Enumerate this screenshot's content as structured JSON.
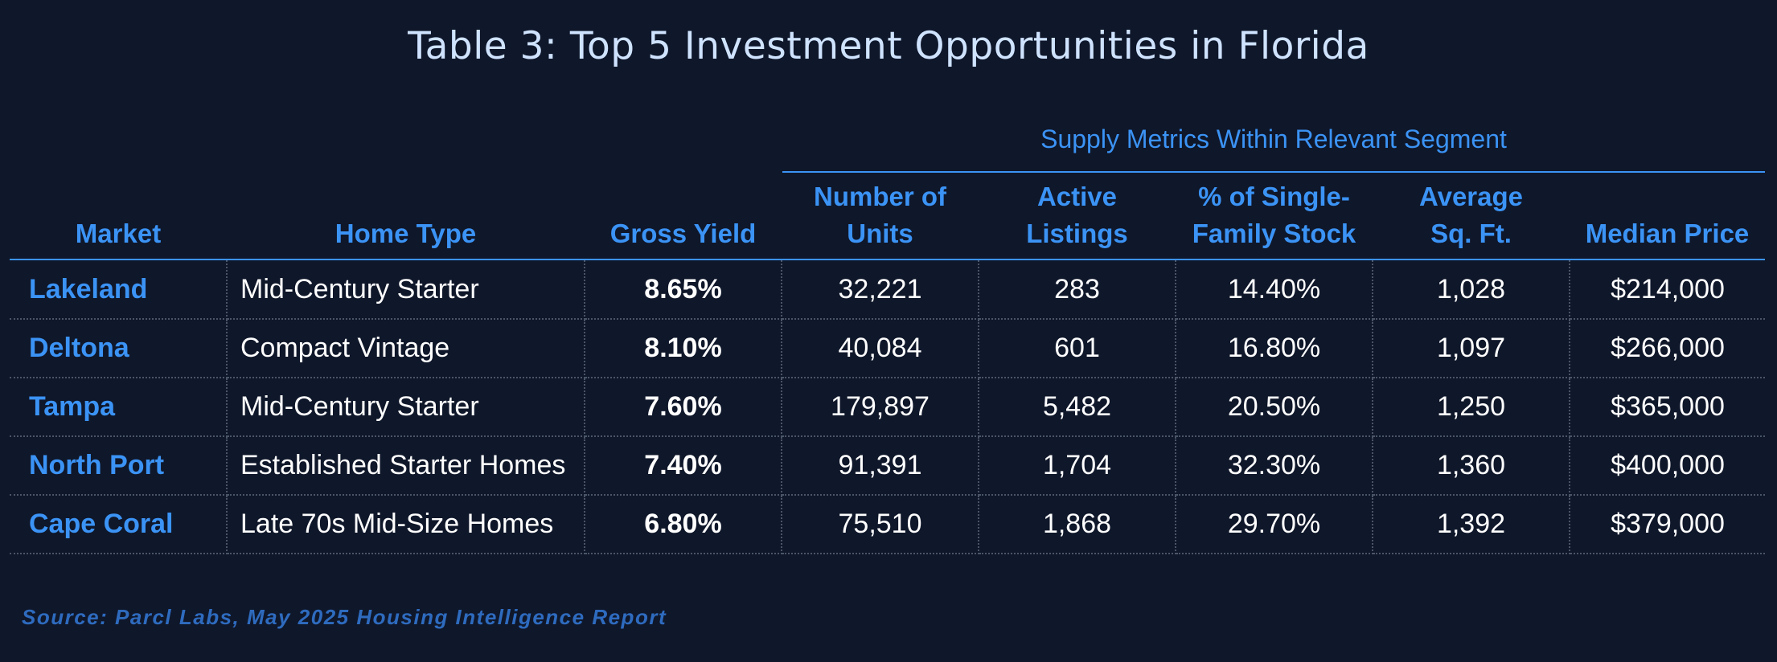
{
  "title": "Table 3: Top 5 Investment Opportunities in Florida",
  "group_header": "Supply Metrics Within Relevant Segment",
  "columns": [
    {
      "line1": "",
      "line2": "Market"
    },
    {
      "line1": "",
      "line2": "Home Type"
    },
    {
      "line1": "",
      "line2": "Gross Yield"
    },
    {
      "line1": "Number of",
      "line2": "Units"
    },
    {
      "line1": "Active",
      "line2": "Listings"
    },
    {
      "line1": "% of Single-",
      "line2": "Family Stock"
    },
    {
      "line1": "Average",
      "line2": "Sq. Ft."
    },
    {
      "line1": "",
      "line2": "Median Price"
    }
  ],
  "rows": [
    {
      "market": "Lakeland",
      "home_type": "Mid-Century Starter",
      "gross_yield": "8.65%",
      "units": "32,221",
      "listings": "283",
      "sf_stock": "14.40%",
      "sqft": "1,028",
      "median_price": "$214,000"
    },
    {
      "market": "Deltona",
      "home_type": "Compact Vintage",
      "gross_yield": "8.10%",
      "units": "40,084",
      "listings": "601",
      "sf_stock": "16.80%",
      "sqft": "1,097",
      "median_price": "$266,000"
    },
    {
      "market": "Tampa",
      "home_type": "Mid-Century Starter",
      "gross_yield": "7.60%",
      "units": "179,897",
      "listings": "5,482",
      "sf_stock": "20.50%",
      "sqft": "1,250",
      "median_price": "$365,000"
    },
    {
      "market": "North Port",
      "home_type": "Established Starter Homes",
      "gross_yield": "7.40%",
      "units": "91,391",
      "listings": "1,704",
      "sf_stock": "32.30%",
      "sqft": "1,360",
      "median_price": "$400,000"
    },
    {
      "market": "Cape Coral",
      "home_type": "Late 70s Mid-Size Homes",
      "gross_yield": "6.80%",
      "units": "75,510",
      "listings": "1,868",
      "sf_stock": "29.70%",
      "sqft": "1,392",
      "median_price": "$379,000"
    }
  ],
  "source": "Source: Parcl Labs, May 2025 Housing Intelligence Report",
  "colors": {
    "background": "#0f172a",
    "accent": "#3b93f5",
    "title": "#cfe3ff",
    "source": "#2e6bbf"
  }
}
